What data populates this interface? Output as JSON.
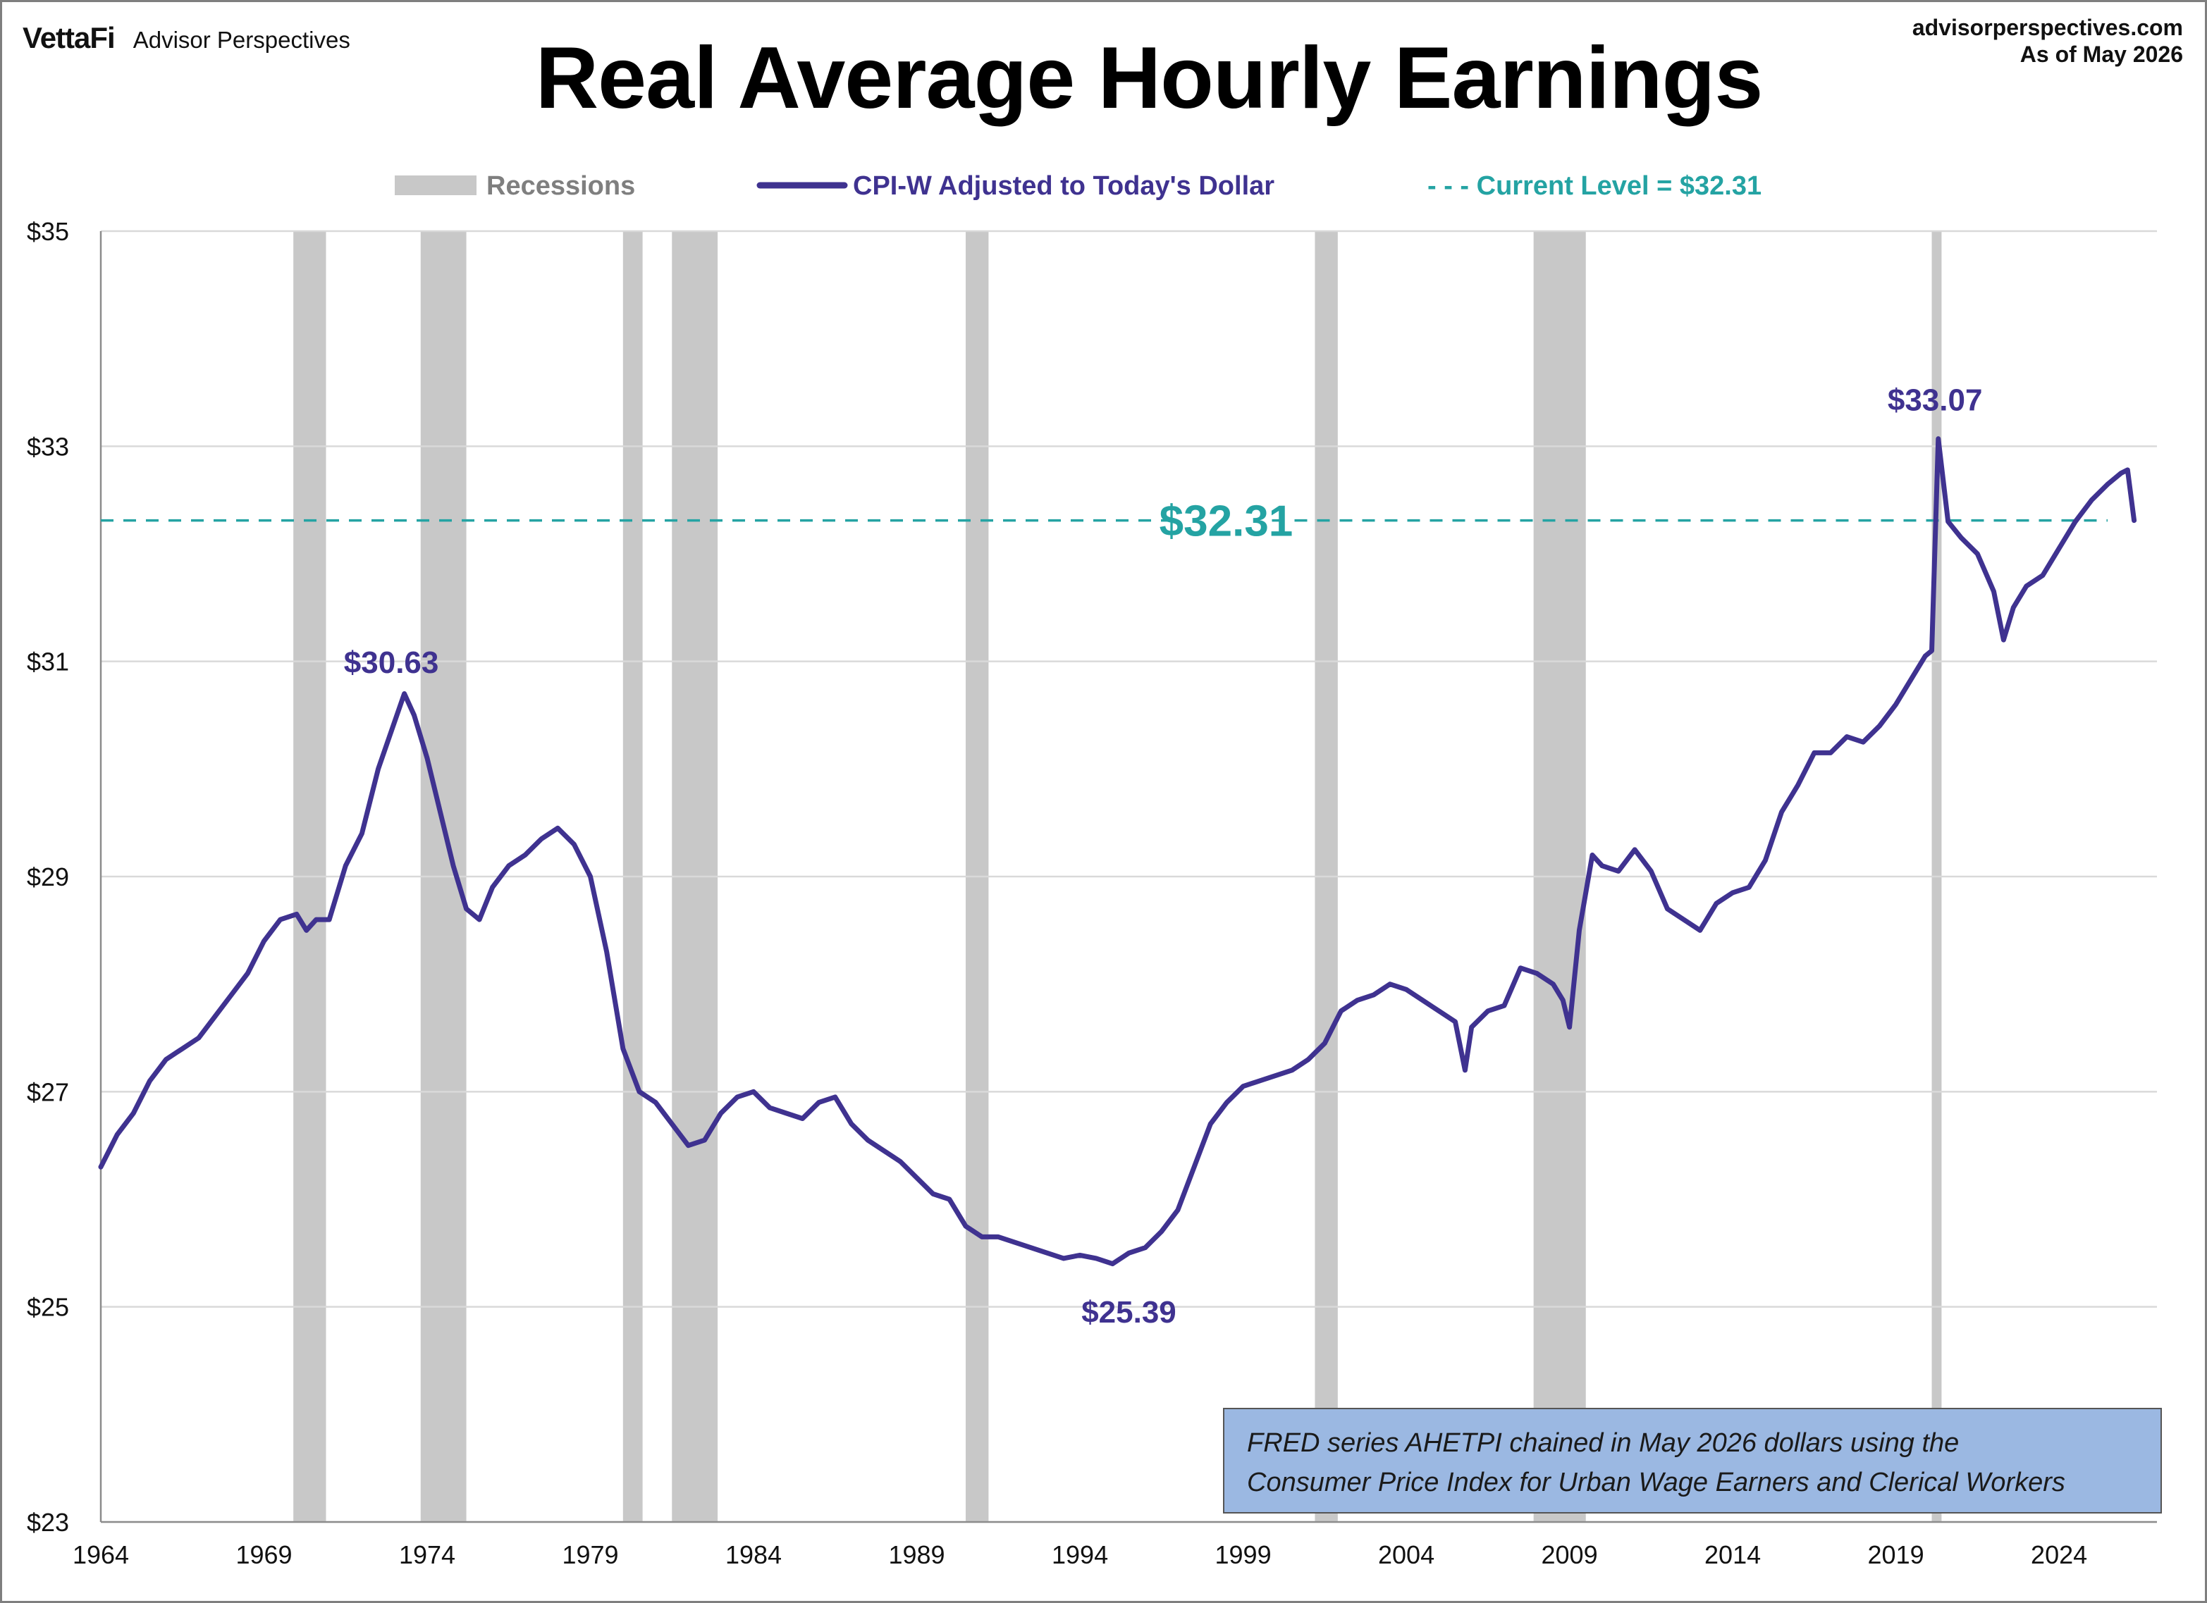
{
  "header": {
    "brand": "VettaFi",
    "brand_sub": "Advisor Perspectives",
    "site": "advisorperspectives.com",
    "as_of": "As of May 2026",
    "title": "Real Average Hourly Earnings"
  },
  "note": {
    "line1": "FRED series AHETPI chained in May 2026 dollars using the",
    "line2": "Consumer Price Index for Urban Wage Earners and Clerical Workers"
  },
  "colors": {
    "series": "#3f3290",
    "current": "#24a3a3",
    "recession": "#c8c8c8",
    "grid": "#d9d9d9",
    "note_bg": "#9bb8e2"
  },
  "chart_data": {
    "type": "line",
    "title": "Real Average Hourly Earnings",
    "xlim": [
      1964,
      2027.0
    ],
    "ylim": [
      23,
      35
    ],
    "y_ticks": [
      23,
      25,
      27,
      29,
      31,
      33,
      35
    ],
    "y_tick_labels": [
      "$23",
      "$25",
      "$27",
      "$29",
      "$31",
      "$33",
      "$35"
    ],
    "x_ticks": [
      1964,
      1969,
      1974,
      1979,
      1984,
      1989,
      1994,
      1999,
      2004,
      2009,
      2014,
      2019,
      2024
    ],
    "x_tick_labels": [
      "1964",
      "1969",
      "1974",
      "1979",
      "1984",
      "1989",
      "1994",
      "1999",
      "2004",
      "2009",
      "2014",
      "2019",
      "2024"
    ],
    "grid": "horizontal",
    "legend_position": "top",
    "legend": [
      {
        "label": "Recessions",
        "kind": "band",
        "color": "#c8c8c8"
      },
      {
        "label": "CPI-W Adjusted to Today's Dollar",
        "kind": "line",
        "color": "#3f3290"
      },
      {
        "label": "- - - Current Level = $32.31",
        "kind": "text",
        "color": "#24a3a3"
      }
    ],
    "recessions": [
      [
        1969.9,
        1970.9
      ],
      [
        1973.8,
        1975.2
      ],
      [
        1980.0,
        1980.6
      ],
      [
        1981.5,
        1982.9
      ],
      [
        1990.5,
        1991.2
      ],
      [
        2001.2,
        2001.9
      ],
      [
        2007.9,
        2009.5
      ],
      [
        2020.1,
        2020.4
      ]
    ],
    "current_level": {
      "value": 32.31,
      "label": "$32.31"
    },
    "annotations": [
      {
        "label": "$30.63",
        "x": 1972.9,
        "y": 30.63
      },
      {
        "label": "$25.39",
        "x": 1995.5,
        "y": 25.39
      },
      {
        "label": "$33.07",
        "x": 2020.2,
        "y": 33.07
      }
    ],
    "series": [
      {
        "name": "CPI-W Adjusted to Today's Dollar",
        "color": "#3f3290",
        "x": [
          1964.0,
          1964.5,
          1965.0,
          1965.5,
          1966.0,
          1966.5,
          1967.0,
          1967.5,
          1968.0,
          1968.5,
          1969.0,
          1969.5,
          1970.0,
          1970.3,
          1970.6,
          1971.0,
          1971.5,
          1972.0,
          1972.5,
          1972.9,
          1973.3,
          1973.6,
          1974.0,
          1974.4,
          1974.8,
          1975.2,
          1975.6,
          1976.0,
          1976.5,
          1977.0,
          1977.5,
          1978.0,
          1978.5,
          1979.0,
          1979.5,
          1980.0,
          1980.5,
          1981.0,
          1981.5,
          1982.0,
          1982.5,
          1983.0,
          1983.5,
          1984.0,
          1984.5,
          1985.0,
          1985.5,
          1986.0,
          1986.5,
          1987.0,
          1987.5,
          1988.0,
          1988.5,
          1989.0,
          1989.5,
          1990.0,
          1990.5,
          1991.0,
          1991.5,
          1992.0,
          1992.5,
          1993.0,
          1993.5,
          1994.0,
          1994.5,
          1995.0,
          1995.5,
          1996.0,
          1996.5,
          1997.0,
          1997.5,
          1998.0,
          1998.5,
          1999.0,
          1999.5,
          2000.0,
          2000.5,
          2001.0,
          2001.5,
          2002.0,
          2002.5,
          2003.0,
          2003.5,
          2004.0,
          2004.5,
          2005.0,
          2005.5,
          2005.8,
          2006.0,
          2006.5,
          2007.0,
          2007.5,
          2008.0,
          2008.5,
          2008.8,
          2009.0,
          2009.3,
          2009.7,
          2010.0,
          2010.5,
          2011.0,
          2011.5,
          2012.0,
          2012.5,
          2013.0,
          2013.5,
          2014.0,
          2014.5,
          2015.0,
          2015.5,
          2016.0,
          2016.5,
          2017.0,
          2017.5,
          2018.0,
          2018.5,
          2019.0,
          2019.5,
          2019.9,
          2020.1,
          2020.3,
          2020.6,
          2021.0,
          2021.5,
          2022.0,
          2022.3,
          2022.6,
          2023.0,
          2023.5,
          2024.0,
          2024.5,
          2025.0,
          2025.5,
          2025.9,
          2026.1,
          2026.3
        ],
        "y": [
          26.3,
          26.6,
          26.8,
          27.1,
          27.3,
          27.4,
          27.5,
          27.7,
          27.9,
          28.1,
          28.4,
          28.6,
          28.65,
          28.5,
          28.6,
          28.6,
          29.1,
          29.4,
          30.0,
          30.35,
          30.7,
          30.5,
          30.1,
          29.6,
          29.1,
          28.7,
          28.6,
          28.9,
          29.1,
          29.2,
          29.35,
          29.45,
          29.3,
          29.0,
          28.3,
          27.4,
          27.0,
          26.9,
          26.7,
          26.5,
          26.55,
          26.8,
          26.95,
          27.0,
          26.85,
          26.8,
          26.75,
          26.9,
          26.95,
          26.7,
          26.55,
          26.45,
          26.35,
          26.2,
          26.05,
          26.0,
          25.75,
          25.65,
          25.65,
          25.6,
          25.55,
          25.5,
          25.45,
          25.48,
          25.45,
          25.4,
          25.5,
          25.55,
          25.7,
          25.9,
          26.3,
          26.7,
          26.9,
          27.05,
          27.1,
          27.15,
          27.2,
          27.3,
          27.45,
          27.75,
          27.85,
          27.9,
          28.0,
          27.95,
          27.85,
          27.75,
          27.65,
          27.2,
          27.6,
          27.75,
          27.8,
          28.15,
          28.1,
          28.0,
          27.85,
          27.6,
          28.5,
          29.2,
          29.1,
          29.05,
          29.25,
          29.05,
          28.7,
          28.6,
          28.5,
          28.75,
          28.85,
          28.9,
          29.15,
          29.6,
          29.85,
          30.15,
          30.15,
          30.3,
          30.25,
          30.4,
          30.6,
          30.85,
          31.05,
          31.1,
          33.07,
          32.3,
          32.15,
          32.0,
          31.65,
          31.2,
          31.5,
          31.7,
          31.8,
          32.05,
          32.3,
          32.5,
          32.65,
          32.75,
          32.78,
          32.31
        ]
      }
    ]
  }
}
